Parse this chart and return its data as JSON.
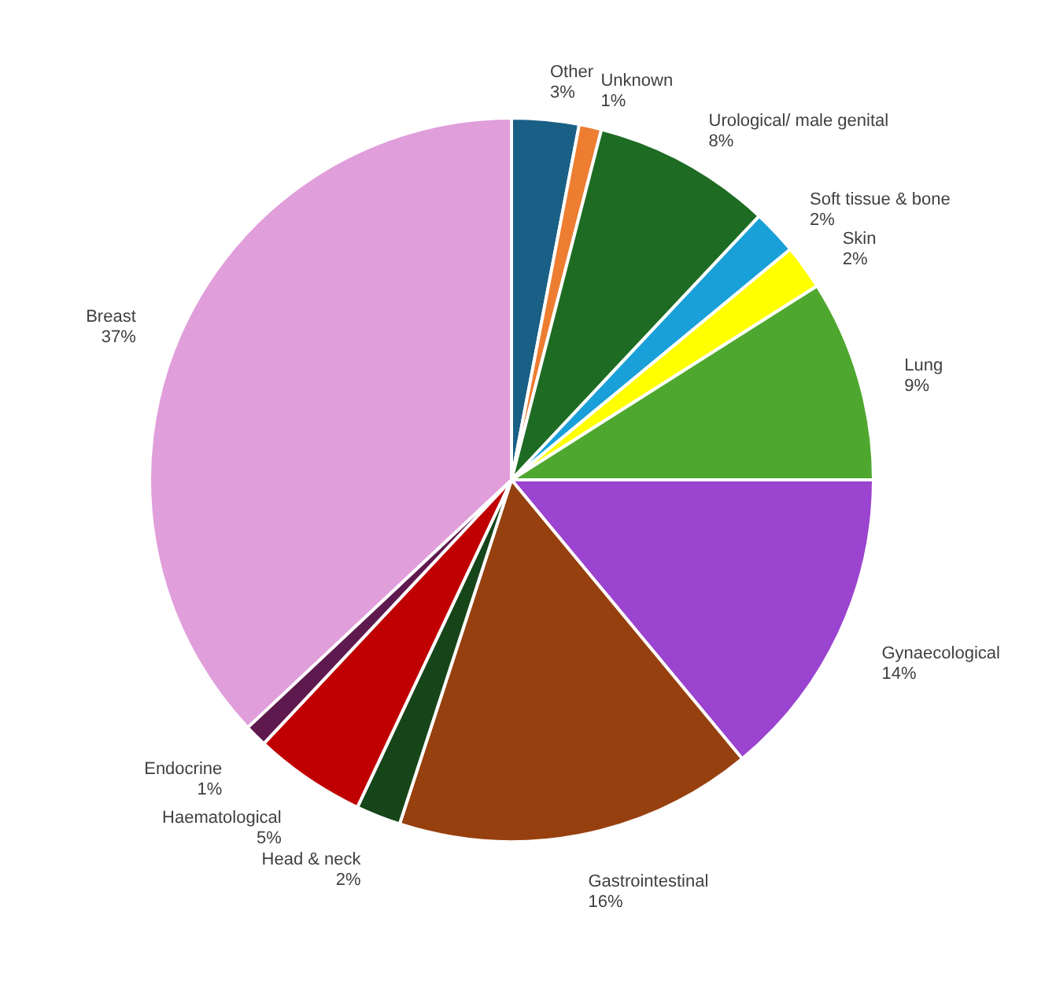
{
  "chart_data": {
    "type": "pie",
    "categories": [
      "Other",
      "Unknown",
      "Urological/ male genital",
      "Soft tissue & bone",
      "Skin",
      "Lung",
      "Gynaecological",
      "Gastrointestinal",
      "Head & neck",
      "Haematological",
      "Endocrine",
      "Breast"
    ],
    "values": [
      3,
      1,
      8,
      2,
      2,
      9,
      14,
      16,
      2,
      5,
      1,
      37
    ],
    "value_labels": [
      "3%",
      "1%",
      "8%",
      "2%",
      "2%",
      "9%",
      "14%",
      "16%",
      "2%",
      "5%",
      "1%",
      "37%"
    ],
    "colors": [
      "#1a5f85",
      "#ed7d31",
      "#1e6b24",
      "#1aa0d8",
      "#ffff00",
      "#4ea72e",
      "#9b44cf",
      "#97400f",
      "#17451a",
      "#c00000",
      "#5e1a4e",
      "#e09edb"
    ],
    "legend": false
  }
}
